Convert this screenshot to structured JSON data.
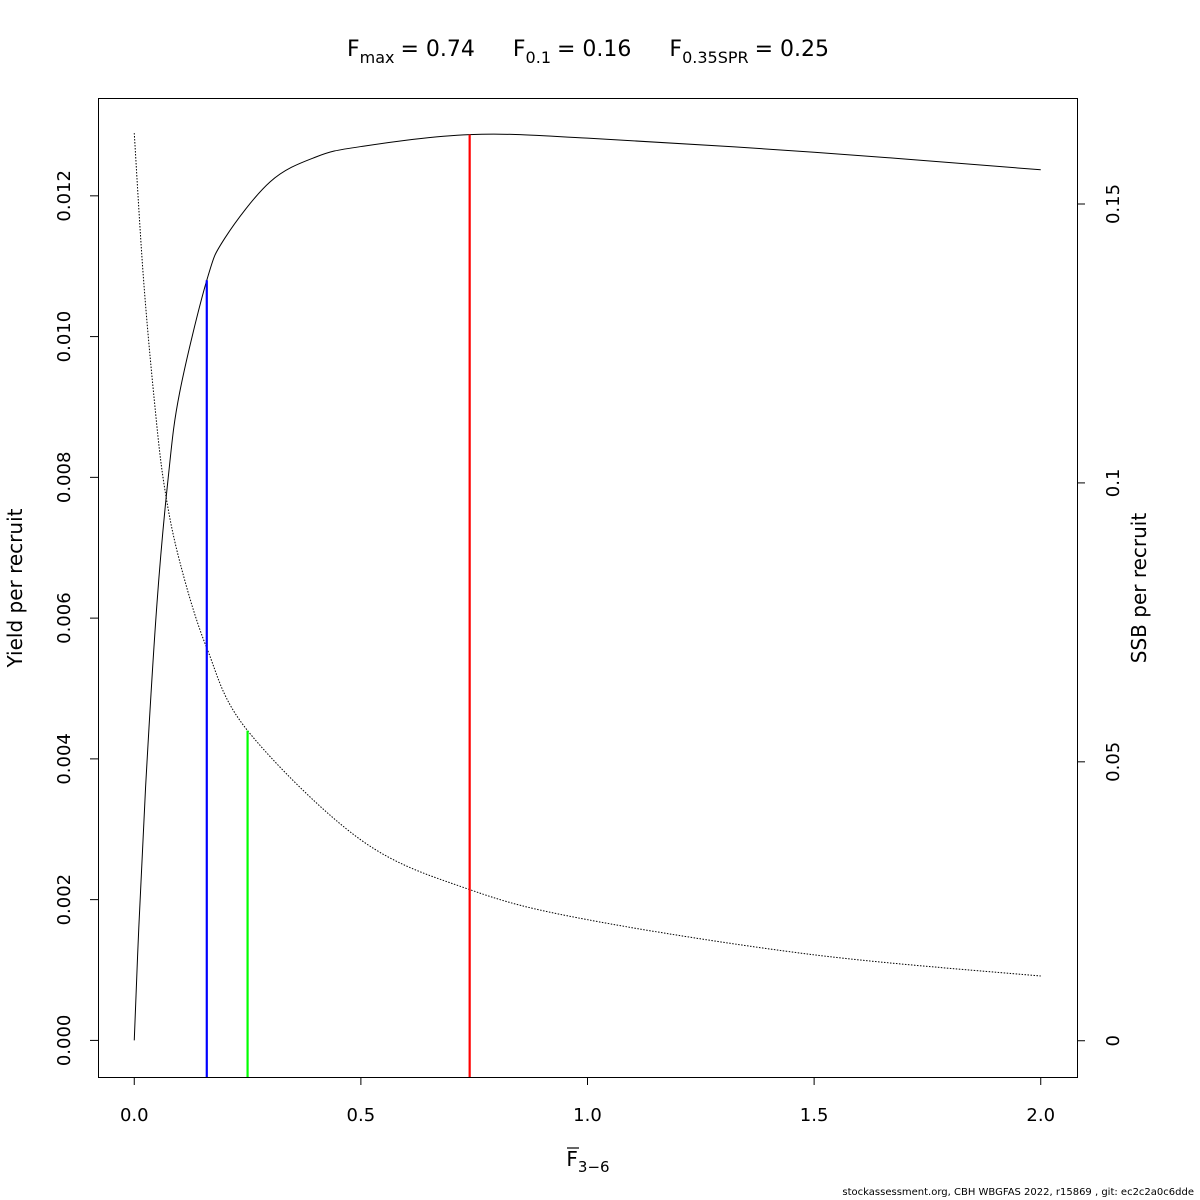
{
  "chart_data": {
    "type": "line",
    "title": {
      "fmax_label": "F",
      "fmax_sub": "max",
      "fmax_value": "= 0.74",
      "f01_label": "F",
      "f01_sub": "0.1",
      "f01_value": "= 0.16",
      "fspr_label": "F",
      "fspr_sub": "0.35SPR",
      "fspr_value": "= 0.25"
    },
    "xlabel": {
      "main": "F",
      "sub": "3−6"
    },
    "ylabel_left": "Yield per recruit",
    "ylabel_right": "SSB per recruit",
    "xlim": [
      -0.08,
      2.08
    ],
    "ylim_left": [
      -0.00052,
      0.01339
    ],
    "ylim_right": [
      -0.0065,
      0.169
    ],
    "x_ticks": [
      "0.0",
      "0.5",
      "1.0",
      "1.5",
      "2.0"
    ],
    "y_left_ticks": [
      "0.000",
      "0.002",
      "0.004",
      "0.006",
      "0.008",
      "0.010",
      "0.012"
    ],
    "y_right_ticks": [
      "0",
      "0.05",
      "0.1",
      "0.15"
    ],
    "grid": false,
    "series": [
      {
        "axis": "left",
        "style": "solid",
        "color": "#000000",
        "x": [
          0,
          0.01,
          0.025,
          0.05,
          0.075,
          0.1,
          0.16,
          0.2,
          0.3,
          0.4,
          0.5,
          0.74,
          1.0,
          1.5,
          2.0
        ],
        "y": [
          0,
          0.0016,
          0.0036,
          0.0062,
          0.008,
          0.0092,
          0.0108,
          0.0114,
          0.0122,
          0.01255,
          0.0127,
          0.01287,
          0.01282,
          0.01262,
          0.01237
        ]
      },
      {
        "axis": "right",
        "style": "dotted",
        "color": "#000000",
        "x": [
          0,
          0.02,
          0.044,
          0.066,
          0.1,
          0.16,
          0.25,
          0.5,
          0.74,
          1.0,
          1.5,
          2.0
        ],
        "y": [
          0.1627,
          0.137,
          0.115,
          0.0996,
          0.086,
          0.0704,
          0.0556,
          0.036,
          0.0271,
          0.0217,
          0.0154,
          0.0116
        ]
      }
    ],
    "reference_lines": [
      {
        "name": "Fmax",
        "x": 0.74,
        "color": "#ff0000",
        "axis": "left",
        "top": 0.01287
      },
      {
        "name": "F0.1",
        "x": 0.16,
        "color": "#0000ff",
        "axis": "left",
        "top": 0.0108
      },
      {
        "name": "F0.35SPR",
        "x": 0.25,
        "color": "#00ff00",
        "axis": "right",
        "top": 0.0556
      }
    ]
  },
  "footer": "stockassessment.org, CBH  WBGFAS  2022, r15869 , git: ec2c2a0c6dde"
}
